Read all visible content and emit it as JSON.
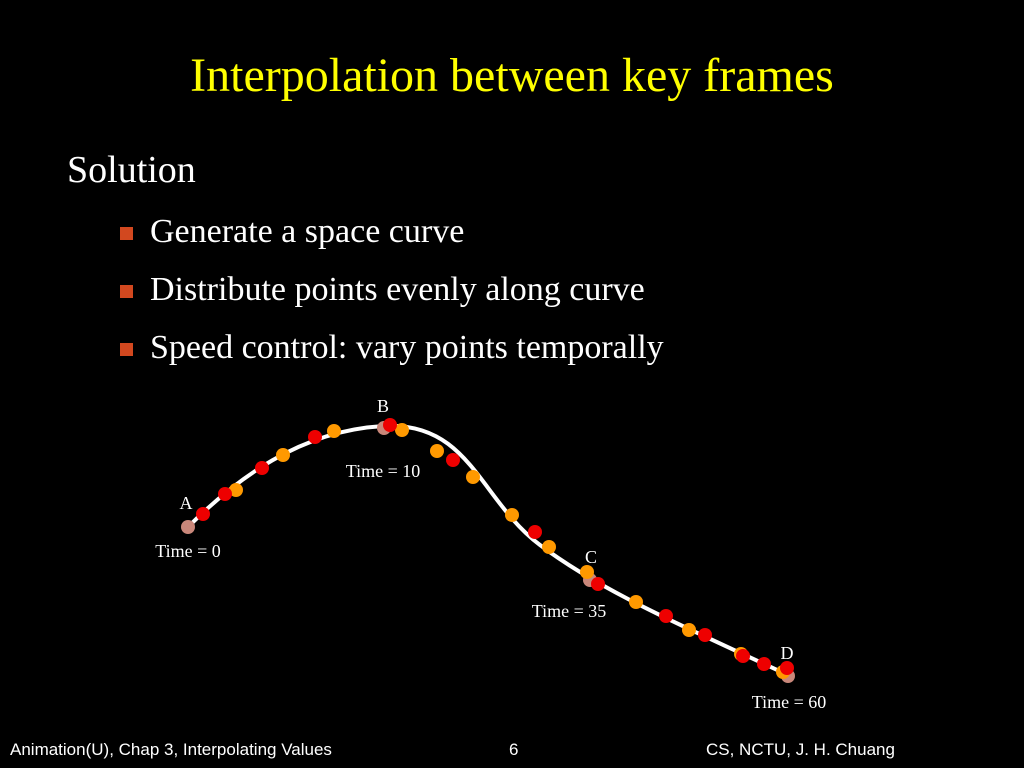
{
  "slide": {
    "title": "Interpolation between key frames",
    "heading": "Solution",
    "bullets": [
      "Generate a space curve",
      "Distribute points evenly along curve",
      "Speed control: vary points temporally"
    ]
  },
  "diagram": {
    "colors": {
      "curve": "#ffffff",
      "key_point": "#c9877a",
      "even_point": "#ff9900",
      "timed_point": "#ee0000",
      "bullet": "#d2481f",
      "title": "#ffff00"
    },
    "key_frames": [
      {
        "label": "A",
        "time_label": "Time = 0"
      },
      {
        "label": "B",
        "time_label": "Time = 10"
      },
      {
        "label": "C",
        "time_label": "Time = 35"
      },
      {
        "label": "D",
        "time_label": "Time = 60"
      }
    ]
  },
  "footer": {
    "left": "Animation(U), Chap 3, Interpolating Values",
    "page_number": "6",
    "right": "CS, NCTU, J. H. Chuang"
  }
}
